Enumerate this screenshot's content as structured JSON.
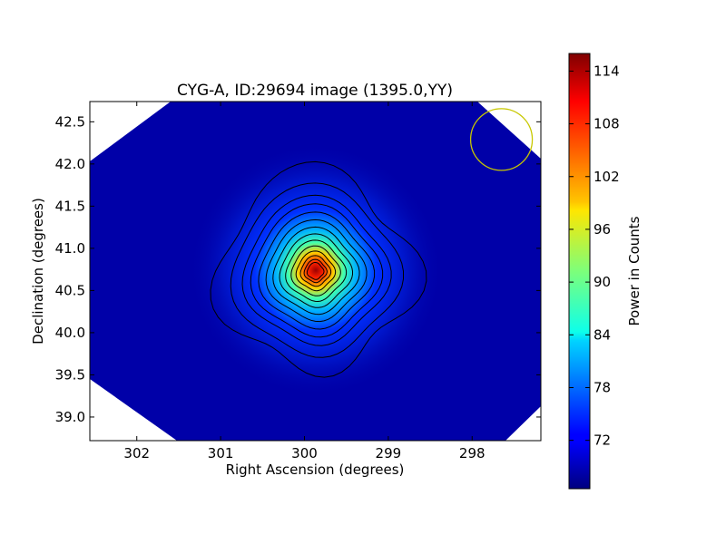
{
  "chart_data": {
    "type": "heatmap",
    "title": "CYG-A, ID:29694 image (1395.0,YY)",
    "xlabel": "Right Ascension (degrees)",
    "ylabel": "Declination (degrees)",
    "xlim": [
      302.56,
      297.18
    ],
    "ylim": [
      38.72,
      42.74
    ],
    "x_ticks": [
      302,
      301,
      300,
      299,
      298
    ],
    "x_tick_labels": [
      "302",
      "301",
      "300",
      "299",
      "298"
    ],
    "y_ticks": [
      39.0,
      39.5,
      40.0,
      40.5,
      41.0,
      41.5,
      42.0,
      42.5
    ],
    "y_tick_labels": [
      "39.0",
      "39.5",
      "40.0",
      "40.5",
      "41.0",
      "41.5",
      "42.0",
      "42.5"
    ],
    "colormap": "jet",
    "source": {
      "ra": 299.87,
      "dec": 40.73,
      "peak": 116,
      "background": 66.8
    },
    "contour_levels": [
      69,
      74,
      78,
      81,
      84,
      87,
      90,
      93,
      96,
      99,
      102,
      105,
      108,
      111
    ],
    "beam": {
      "ra": 297.65,
      "dec": 42.29,
      "color": "#c8c800"
    },
    "colorbar": {
      "label": "Power in Counts",
      "min": 66.5,
      "max": 116,
      "ticks": [
        72,
        78,
        84,
        90,
        96,
        102,
        108,
        114
      ],
      "tick_labels": [
        "72",
        "78",
        "84",
        "90",
        "96",
        "102",
        "108",
        "114"
      ]
    }
  }
}
